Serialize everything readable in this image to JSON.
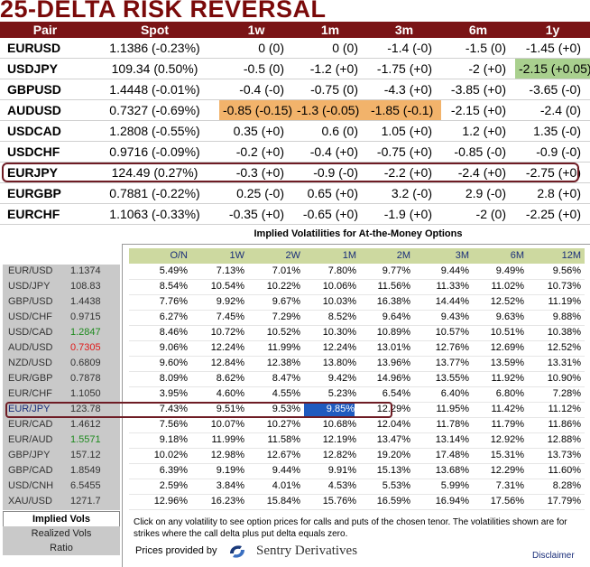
{
  "title": "25-DELTA RISK REVERSAL",
  "rr": {
    "headers": [
      "Pair",
      "Spot",
      "1w",
      "1m",
      "3m",
      "6m",
      "1y"
    ],
    "rows": [
      {
        "pair": "EURUSD",
        "spot": "1.1386 (-0.23%)",
        "w1": "0 (0)",
        "m1": "0 (0)",
        "m3": "-1.4 (-0)",
        "m6": "-1.5 (0)",
        "y1": "-1.45 (+0)"
      },
      {
        "pair": "USDJPY",
        "spot": "109.34 (0.50%)",
        "w1": "-0.5 (0)",
        "m1": "-1.2 (+0)",
        "m3": "-1.75 (+0)",
        "m6": "-2 (+0)",
        "y1": "-2.15 (+0.05)"
      },
      {
        "pair": "GBPUSD",
        "spot": "1.4448 (-0.01%)",
        "w1": "-0.4 (-0)",
        "m1": "-0.75 (0)",
        "m3": "-4.3 (+0)",
        "m6": "-3.85 (+0)",
        "y1": "-3.65 (-0)"
      },
      {
        "pair": "AUDUSD",
        "spot": "0.7327 (-0.69%)",
        "w1": "-0.85 (-0.15)",
        "m1": "-1.3 (-0.05)",
        "m3": "-1.85 (-0.1)",
        "m6": "-2.15 (+0)",
        "y1": "-2.4 (0)"
      },
      {
        "pair": "USDCAD",
        "spot": "1.2808 (-0.55%)",
        "w1": "0.35 (+0)",
        "m1": "0.6 (0)",
        "m3": "1.05 (+0)",
        "m6": "1.2 (+0)",
        "y1": "1.35 (-0)"
      },
      {
        "pair": "USDCHF",
        "spot": "0.9716 (-0.09%)",
        "w1": "-0.2 (+0)",
        "m1": "-0.4 (+0)",
        "m3": "-0.75 (+0)",
        "m6": "-0.85 (-0)",
        "y1": "-0.9 (-0)"
      },
      {
        "pair": "EURJPY",
        "spot": "124.49 (0.27%)",
        "w1": "-0.3 (+0)",
        "m1": "-0.9 (-0)",
        "m3": "-2.2 (+0)",
        "m6": "-2.4 (+0)",
        "y1": "-2.75 (+0)"
      },
      {
        "pair": "EURGBP",
        "spot": "0.7881 (-0.22%)",
        "w1": "0.25 (-0)",
        "m1": "0.65 (+0)",
        "m3": "3.2 (-0)",
        "m6": "2.9 (-0)",
        "y1": "2.8 (+0)"
      },
      {
        "pair": "EURCHF",
        "spot": "1.1063 (-0.33%)",
        "w1": "-0.35 (+0)",
        "m1": "-0.65 (+0)",
        "m3": "-1.9 (+0)",
        "m6": "-2 (0)",
        "y1": "-2.25 (+0)"
      }
    ],
    "highlight_colors": {
      "orange": "#f2b36b",
      "green": "#a9d08e"
    }
  },
  "iv": {
    "title": "Implied Volatilities for At-the-Money Options",
    "headers": [
      "O/N",
      "1W",
      "2W",
      "1M",
      "2M",
      "3M",
      "6M",
      "12M"
    ],
    "rows": [
      {
        "pair": "EUR/USD",
        "spot": "1.1374",
        "vals": [
          "5.49%",
          "7.13%",
          "7.01%",
          "7.80%",
          "9.77%",
          "9.44%",
          "9.49%",
          "9.56%"
        ]
      },
      {
        "pair": "USD/JPY",
        "spot": "108.83",
        "vals": [
          "8.54%",
          "10.54%",
          "10.22%",
          "10.06%",
          "11.56%",
          "11.33%",
          "11.02%",
          "10.73%"
        ]
      },
      {
        "pair": "GBP/USD",
        "spot": "1.4438",
        "vals": [
          "7.76%",
          "9.92%",
          "9.67%",
          "10.03%",
          "16.38%",
          "14.44%",
          "12.52%",
          "11.19%"
        ]
      },
      {
        "pair": "USD/CHF",
        "spot": "0.9715",
        "vals": [
          "6.27%",
          "7.45%",
          "7.29%",
          "8.52%",
          "9.64%",
          "9.43%",
          "9.63%",
          "9.88%"
        ]
      },
      {
        "pair": "USD/CAD",
        "spot": "1.2847",
        "vals": [
          "8.46%",
          "10.72%",
          "10.52%",
          "10.30%",
          "10.89%",
          "10.57%",
          "10.51%",
          "10.38%"
        ]
      },
      {
        "pair": "AUD/USD",
        "spot": "0.7305",
        "vals": [
          "9.06%",
          "12.24%",
          "11.99%",
          "12.24%",
          "13.01%",
          "12.76%",
          "12.69%",
          "12.52%"
        ]
      },
      {
        "pair": "NZD/USD",
        "spot": "0.6809",
        "vals": [
          "9.60%",
          "12.84%",
          "12.38%",
          "13.80%",
          "13.96%",
          "13.77%",
          "13.59%",
          "13.31%"
        ]
      },
      {
        "pair": "EUR/GBP",
        "spot": "0.7878",
        "vals": [
          "8.09%",
          "8.62%",
          "8.47%",
          "9.42%",
          "14.96%",
          "13.55%",
          "11.92%",
          "10.90%"
        ]
      },
      {
        "pair": "EUR/CHF",
        "spot": "1.1050",
        "vals": [
          "3.95%",
          "4.60%",
          "4.55%",
          "5.23%",
          "6.54%",
          "6.40%",
          "6.80%",
          "7.28%"
        ]
      },
      {
        "pair": "EUR/JPY",
        "spot": "123.78",
        "vals": [
          "7.43%",
          "9.51%",
          "9.53%",
          "9.85%",
          "12.29%",
          "11.95%",
          "11.42%",
          "11.12%"
        ]
      },
      {
        "pair": "EUR/CAD",
        "spot": "1.4612",
        "vals": [
          "7.56%",
          "10.07%",
          "10.27%",
          "10.68%",
          "12.04%",
          "11.78%",
          "11.79%",
          "11.86%"
        ]
      },
      {
        "pair": "EUR/AUD",
        "spot": "1.5571",
        "vals": [
          "9.18%",
          "11.99%",
          "11.58%",
          "12.19%",
          "13.47%",
          "13.14%",
          "12.92%",
          "12.88%"
        ]
      },
      {
        "pair": "GBP/JPY",
        "spot": "157.12",
        "vals": [
          "10.02%",
          "12.98%",
          "12.67%",
          "12.82%",
          "19.20%",
          "17.48%",
          "15.31%",
          "13.73%"
        ]
      },
      {
        "pair": "GBP/CAD",
        "spot": "1.8549",
        "vals": [
          "6.39%",
          "9.19%",
          "9.44%",
          "9.91%",
          "15.13%",
          "13.68%",
          "12.29%",
          "11.60%"
        ]
      },
      {
        "pair": "USD/CNH",
        "spot": "6.5455",
        "vals": [
          "2.59%",
          "3.84%",
          "4.01%",
          "4.53%",
          "5.53%",
          "5.99%",
          "7.31%",
          "8.28%"
        ]
      },
      {
        "pair": "XAU/USD",
        "spot": "1271.7",
        "vals": [
          "12.96%",
          "16.23%",
          "15.84%",
          "15.76%",
          "16.59%",
          "16.94%",
          "17.56%",
          "17.79%"
        ]
      }
    ],
    "tabs": [
      "Implied Vols",
      "Realized Vols",
      "Ratio"
    ],
    "note": "Click on any volatility to see option prices for calls and puts of the chosen tenor. The volatilities shown are for strikes where the call delta plus put delta equals zero.",
    "provided_by": "Prices provided by",
    "provider": "Sentry Derivatives",
    "disclaimer": "Disclaimer",
    "colors": {
      "header_bg": "#cdd9a0",
      "spot_up": "#1f8a1f",
      "spot_down": "#e01818",
      "selected_cell": "#1f5bbf"
    }
  }
}
